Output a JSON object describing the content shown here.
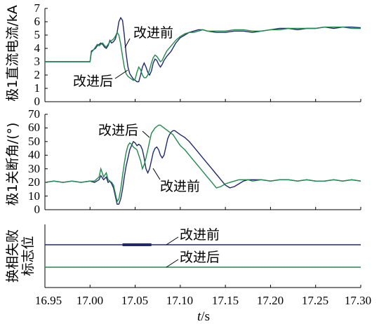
{
  "chart_data": [
    {
      "type": "line",
      "ylabel": "极1直流电流/kA",
      "ylim": [
        0,
        7
      ],
      "yticks": [
        "0",
        "1",
        "2",
        "3",
        "4",
        "5",
        "6",
        "7"
      ],
      "xlim": [
        16.95,
        17.3
      ],
      "series": [
        {
          "name": "改进前",
          "color": "#1f2a6e",
          "x": [
            16.95,
            17.0,
            17.0015,
            17.004,
            17.006,
            17.008,
            17.01,
            17.012,
            17.014,
            17.016,
            17.018,
            17.02,
            17.022,
            17.024,
            17.026,
            17.028,
            17.03,
            17.032,
            17.034,
            17.036,
            17.038,
            17.04,
            17.042,
            17.044,
            17.046,
            17.048,
            17.05,
            17.052,
            17.054,
            17.056,
            17.058,
            17.06,
            17.062,
            17.064,
            17.066,
            17.068,
            17.07,
            17.072,
            17.074,
            17.076,
            17.078,
            17.08,
            17.082,
            17.085,
            17.09,
            17.095,
            17.1,
            17.105,
            17.11,
            17.115,
            17.12,
            17.125,
            17.13,
            17.14,
            17.15,
            17.16,
            17.17,
            17.18,
            17.19,
            17.2,
            17.21,
            17.22,
            17.23,
            17.24,
            17.25,
            17.26,
            17.27,
            17.28,
            17.29,
            17.3
          ],
          "y": [
            3.0,
            3.0,
            3.8,
            3.9,
            4.0,
            4.2,
            4.3,
            4.4,
            4.3,
            4.1,
            4.0,
            4.2,
            4.6,
            4.4,
            4.5,
            4.7,
            5.2,
            6.0,
            6.3,
            6.1,
            5.0,
            3.6,
            2.6,
            2.1,
            1.9,
            1.7,
            1.6,
            1.5,
            1.5,
            2.0,
            2.6,
            2.9,
            2.6,
            2.2,
            2.0,
            2.3,
            2.9,
            3.2,
            3.1,
            2.8,
            2.6,
            2.8,
            3.1,
            3.4,
            3.8,
            4.4,
            4.8,
            5.0,
            5.2,
            5.3,
            5.4,
            5.4,
            5.3,
            5.2,
            5.2,
            5.3,
            5.3,
            5.2,
            5.3,
            5.4,
            5.5,
            5.5,
            5.4,
            5.5,
            5.5,
            5.6,
            5.5,
            5.6,
            5.6,
            5.55
          ]
        },
        {
          "name": "改进后",
          "color": "#1f8a4c",
          "x": [
            16.95,
            17.0,
            17.0015,
            17.004,
            17.006,
            17.008,
            17.01,
            17.012,
            17.014,
            17.016,
            17.018,
            17.02,
            17.022,
            17.024,
            17.026,
            17.028,
            17.03,
            17.032,
            17.034,
            17.036,
            17.038,
            17.04,
            17.042,
            17.044,
            17.046,
            17.048,
            17.05,
            17.052,
            17.054,
            17.056,
            17.058,
            17.06,
            17.062,
            17.064,
            17.066,
            17.068,
            17.07,
            17.072,
            17.074,
            17.076,
            17.078,
            17.08,
            17.082,
            17.085,
            17.09,
            17.095,
            17.1,
            17.105,
            17.11,
            17.115,
            17.12,
            17.125,
            17.13,
            17.14,
            17.15,
            17.16,
            17.17,
            17.18,
            17.19,
            17.2,
            17.21,
            17.22,
            17.23,
            17.24,
            17.25,
            17.26,
            17.27,
            17.28,
            17.29,
            17.3
          ],
          "y": [
            3.0,
            3.0,
            3.7,
            3.9,
            4.1,
            4.3,
            4.2,
            4.3,
            4.4,
            4.2,
            4.1,
            4.3,
            4.5,
            4.6,
            4.7,
            4.9,
            5.2,
            5.0,
            4.3,
            3.4,
            2.6,
            2.1,
            1.9,
            1.8,
            1.7,
            1.6,
            1.7,
            2.2,
            2.6,
            2.4,
            2.0,
            1.8,
            1.8,
            2.0,
            2.4,
            2.9,
            3.3,
            3.5,
            3.4,
            3.2,
            3.0,
            3.1,
            3.4,
            3.8,
            4.2,
            4.6,
            4.9,
            5.1,
            5.2,
            5.2,
            5.3,
            5.4,
            5.3,
            5.3,
            5.3,
            5.4,
            5.4,
            5.3,
            5.3,
            5.4,
            5.4,
            5.5,
            5.5,
            5.5,
            5.5,
            5.6,
            5.6,
            5.6,
            5.5,
            5.5
          ]
        }
      ],
      "annotations": [
        {
          "text": "改进前"
        },
        {
          "text": "改进后"
        }
      ]
    },
    {
      "type": "line",
      "ylabel": "极1关断角/(°)",
      "ylim": [
        0,
        70
      ],
      "yticks": [
        "0",
        "10",
        "20",
        "30",
        "40",
        "50",
        "60",
        "70"
      ],
      "xlim": [
        16.95,
        17.3
      ],
      "series": [
        {
          "name": "改进前",
          "color": "#1f2a6e",
          "x": [
            16.95,
            16.96,
            16.97,
            16.98,
            16.99,
            17.0,
            17.005,
            17.01,
            17.012,
            17.015,
            17.018,
            17.02,
            17.022,
            17.024,
            17.026,
            17.028,
            17.03,
            17.032,
            17.034,
            17.036,
            17.038,
            17.04,
            17.042,
            17.044,
            17.046,
            17.048,
            17.05,
            17.052,
            17.054,
            17.056,
            17.058,
            17.06,
            17.062,
            17.064,
            17.066,
            17.068,
            17.07,
            17.072,
            17.074,
            17.076,
            17.078,
            17.08,
            17.082,
            17.084,
            17.086,
            17.088,
            17.09,
            17.092,
            17.094,
            17.096,
            17.098,
            17.1,
            17.105,
            17.11,
            17.115,
            17.12,
            17.125,
            17.13,
            17.135,
            17.14,
            17.145,
            17.15,
            17.155,
            17.16,
            17.165,
            17.17,
            17.175,
            17.18,
            17.19,
            17.2,
            17.21,
            17.22,
            17.23,
            17.24,
            17.25,
            17.26,
            17.27,
            17.28,
            17.29,
            17.3
          ],
          "y": [
            20,
            21,
            20,
            21,
            20,
            21,
            20,
            22,
            25,
            22,
            24,
            20,
            21,
            19,
            16,
            10,
            4,
            4,
            8,
            15,
            24,
            32,
            38,
            44,
            47,
            50,
            49,
            47,
            48,
            47,
            44,
            38,
            30,
            27,
            30,
            36,
            42,
            45,
            46,
            44,
            40,
            38,
            40,
            46,
            52,
            55,
            57,
            58,
            58,
            57,
            56,
            55,
            53,
            50,
            46,
            42,
            38,
            34,
            30,
            26,
            22,
            18,
            16,
            17,
            19,
            21,
            22,
            22,
            22,
            21,
            22,
            22,
            21,
            22,
            21,
            21,
            22,
            21,
            22,
            21
          ]
        },
        {
          "name": "改进后",
          "color": "#1f8a4c",
          "x": [
            16.95,
            16.96,
            16.97,
            16.98,
            16.99,
            17.0,
            17.005,
            17.01,
            17.012,
            17.015,
            17.018,
            17.02,
            17.022,
            17.024,
            17.026,
            17.028,
            17.03,
            17.032,
            17.034,
            17.036,
            17.038,
            17.04,
            17.042,
            17.044,
            17.046,
            17.048,
            17.05,
            17.052,
            17.054,
            17.056,
            17.058,
            17.06,
            17.062,
            17.064,
            17.066,
            17.068,
            17.07,
            17.072,
            17.074,
            17.076,
            17.078,
            17.08,
            17.082,
            17.084,
            17.086,
            17.088,
            17.09,
            17.092,
            17.094,
            17.096,
            17.098,
            17.1,
            17.105,
            17.11,
            17.115,
            17.12,
            17.125,
            17.13,
            17.135,
            17.14,
            17.145,
            17.15,
            17.155,
            17.16,
            17.165,
            17.17,
            17.175,
            17.18,
            17.19,
            17.2,
            17.21,
            17.22,
            17.23,
            17.24,
            17.25,
            17.26,
            17.27,
            17.28,
            17.29,
            17.3
          ],
          "y": [
            20,
            21,
            20,
            21,
            20,
            21,
            21,
            24,
            30,
            24,
            27,
            22,
            21,
            20,
            18,
            12,
            6,
            8,
            15,
            25,
            34,
            42,
            47,
            49,
            48,
            46,
            45,
            44,
            40,
            36,
            30,
            33,
            38,
            44,
            50,
            56,
            58,
            60,
            61,
            62,
            62,
            61,
            60,
            59,
            58,
            57,
            56,
            55,
            53,
            51,
            49,
            47,
            44,
            40,
            36,
            32,
            28,
            24,
            20,
            16,
            17,
            19,
            20,
            21,
            22,
            22,
            22,
            21,
            22,
            21,
            22,
            22,
            21,
            22,
            21,
            21,
            22,
            21,
            22,
            21
          ]
        }
      ],
      "annotations": [
        {
          "text": "改进后"
        },
        {
          "text": "改进前"
        }
      ]
    },
    {
      "type": "line",
      "ylabel": [
        "换相失败",
        "标志位"
      ],
      "xlim": [
        16.95,
        17.3
      ],
      "xticks": [
        "16.95",
        "17.00",
        "17.05",
        "17.10",
        "17.15",
        "17.20",
        "17.25",
        "17.30"
      ],
      "xlabel": [
        "t",
        "/s"
      ],
      "series": [
        {
          "name": "改进前",
          "color": "#1f2a6e",
          "level": "high",
          "pulse_start": 17.036,
          "pulse_end": 17.068
        },
        {
          "name": "改进后",
          "color": "#1f8a4c",
          "level": "low"
        }
      ],
      "annotations": [
        {
          "text": "改进前"
        },
        {
          "text": "改进后"
        }
      ]
    }
  ]
}
